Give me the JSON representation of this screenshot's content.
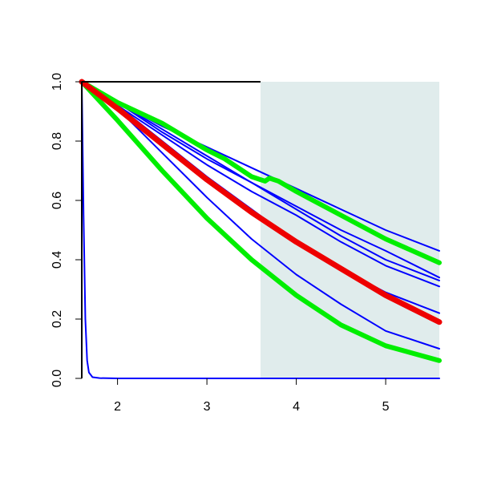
{
  "chart_data": {
    "type": "line",
    "title": "",
    "xlabel": "",
    "ylabel": "",
    "xlim": [
      1.6,
      5.6
    ],
    "ylim": [
      0.0,
      1.0
    ],
    "x_ticks": [
      2,
      3,
      4,
      5
    ],
    "x_tick_labels": [
      "2",
      "3",
      "4",
      "5"
    ],
    "y_ticks": [
      0.0,
      0.2,
      0.4,
      0.6,
      0.8,
      1.0
    ],
    "y_tick_labels": [
      "0.0",
      "0.2",
      "0.4",
      "0.6",
      "0.8",
      "1.0"
    ],
    "grid": false,
    "shaded_region": {
      "x_range": [
        3.6,
        5.6
      ],
      "color": "#e0ecec"
    },
    "colors": {
      "axis": "#000000",
      "blue": "#0000ff",
      "green": "#00ee00",
      "red": "#ee0000"
    },
    "series": [
      {
        "role": "blue",
        "x": [
          1.6,
          1.62,
          1.64,
          1.66,
          1.68,
          1.72,
          1.8,
          2.0,
          3.0,
          4.0,
          5.0,
          5.6
        ],
        "y": [
          1.0,
          0.55,
          0.2,
          0.06,
          0.02,
          0.004,
          0.001,
          0.0,
          0.0,
          0.0,
          0.0,
          0.0
        ]
      },
      {
        "role": "blue",
        "x": [
          1.6,
          2.0,
          2.5,
          3.0,
          3.5,
          4.0,
          4.5,
          5.0,
          5.6
        ],
        "y": [
          1.0,
          0.93,
          0.85,
          0.78,
          0.71,
          0.64,
          0.57,
          0.5,
          0.43
        ]
      },
      {
        "role": "blue",
        "x": [
          1.6,
          2.0,
          2.5,
          3.0,
          3.5,
          4.0,
          4.5,
          5.0,
          5.6
        ],
        "y": [
          1.0,
          0.93,
          0.83,
          0.74,
          0.66,
          0.58,
          0.5,
          0.43,
          0.34
        ]
      },
      {
        "role": "blue",
        "x": [
          1.6,
          2.0,
          2.5,
          3.0,
          3.5,
          4.0,
          4.5,
          5.0,
          5.6
        ],
        "y": [
          1.0,
          0.93,
          0.84,
          0.75,
          0.66,
          0.57,
          0.48,
          0.4,
          0.33
        ]
      },
      {
        "role": "blue",
        "x": [
          1.6,
          2.0,
          2.5,
          3.0,
          3.5,
          4.0,
          4.5,
          5.0,
          5.6
        ],
        "y": [
          1.0,
          0.92,
          0.82,
          0.72,
          0.63,
          0.55,
          0.46,
          0.38,
          0.31
        ]
      },
      {
        "role": "blue",
        "x": [
          1.6,
          2.0,
          2.5,
          3.0,
          3.5,
          4.0,
          4.5,
          5.0,
          5.6
        ],
        "y": [
          1.0,
          0.92,
          0.8,
          0.68,
          0.57,
          0.46,
          0.37,
          0.29,
          0.22
        ]
      },
      {
        "role": "blue",
        "x": [
          1.6,
          2.0,
          2.5,
          3.0,
          3.5,
          4.0,
          4.5,
          5.0,
          5.6
        ],
        "y": [
          1.0,
          0.91,
          0.76,
          0.61,
          0.47,
          0.35,
          0.25,
          0.16,
          0.1
        ]
      },
      {
        "role": "green",
        "x": [
          1.6,
          2.0,
          2.5,
          3.0,
          3.2,
          3.4,
          3.5,
          3.6,
          3.65,
          3.7,
          3.8,
          4.0,
          4.5,
          5.0,
          5.6
        ],
        "y": [
          1.0,
          0.93,
          0.86,
          0.77,
          0.74,
          0.7,
          0.68,
          0.67,
          0.665,
          0.675,
          0.665,
          0.63,
          0.55,
          0.47,
          0.39
        ]
      },
      {
        "role": "green",
        "x": [
          1.6,
          2.0,
          2.5,
          3.0,
          3.5,
          4.0,
          4.5,
          5.0,
          5.6
        ],
        "y": [
          1.0,
          0.87,
          0.7,
          0.54,
          0.4,
          0.28,
          0.18,
          0.11,
          0.06
        ]
      },
      {
        "role": "red",
        "x": [
          1.6,
          2.0,
          2.5,
          3.0,
          3.5,
          4.0,
          4.5,
          5.0,
          5.6
        ],
        "y": [
          1.0,
          0.91,
          0.79,
          0.67,
          0.56,
          0.46,
          0.37,
          0.28,
          0.19
        ]
      }
    ]
  }
}
